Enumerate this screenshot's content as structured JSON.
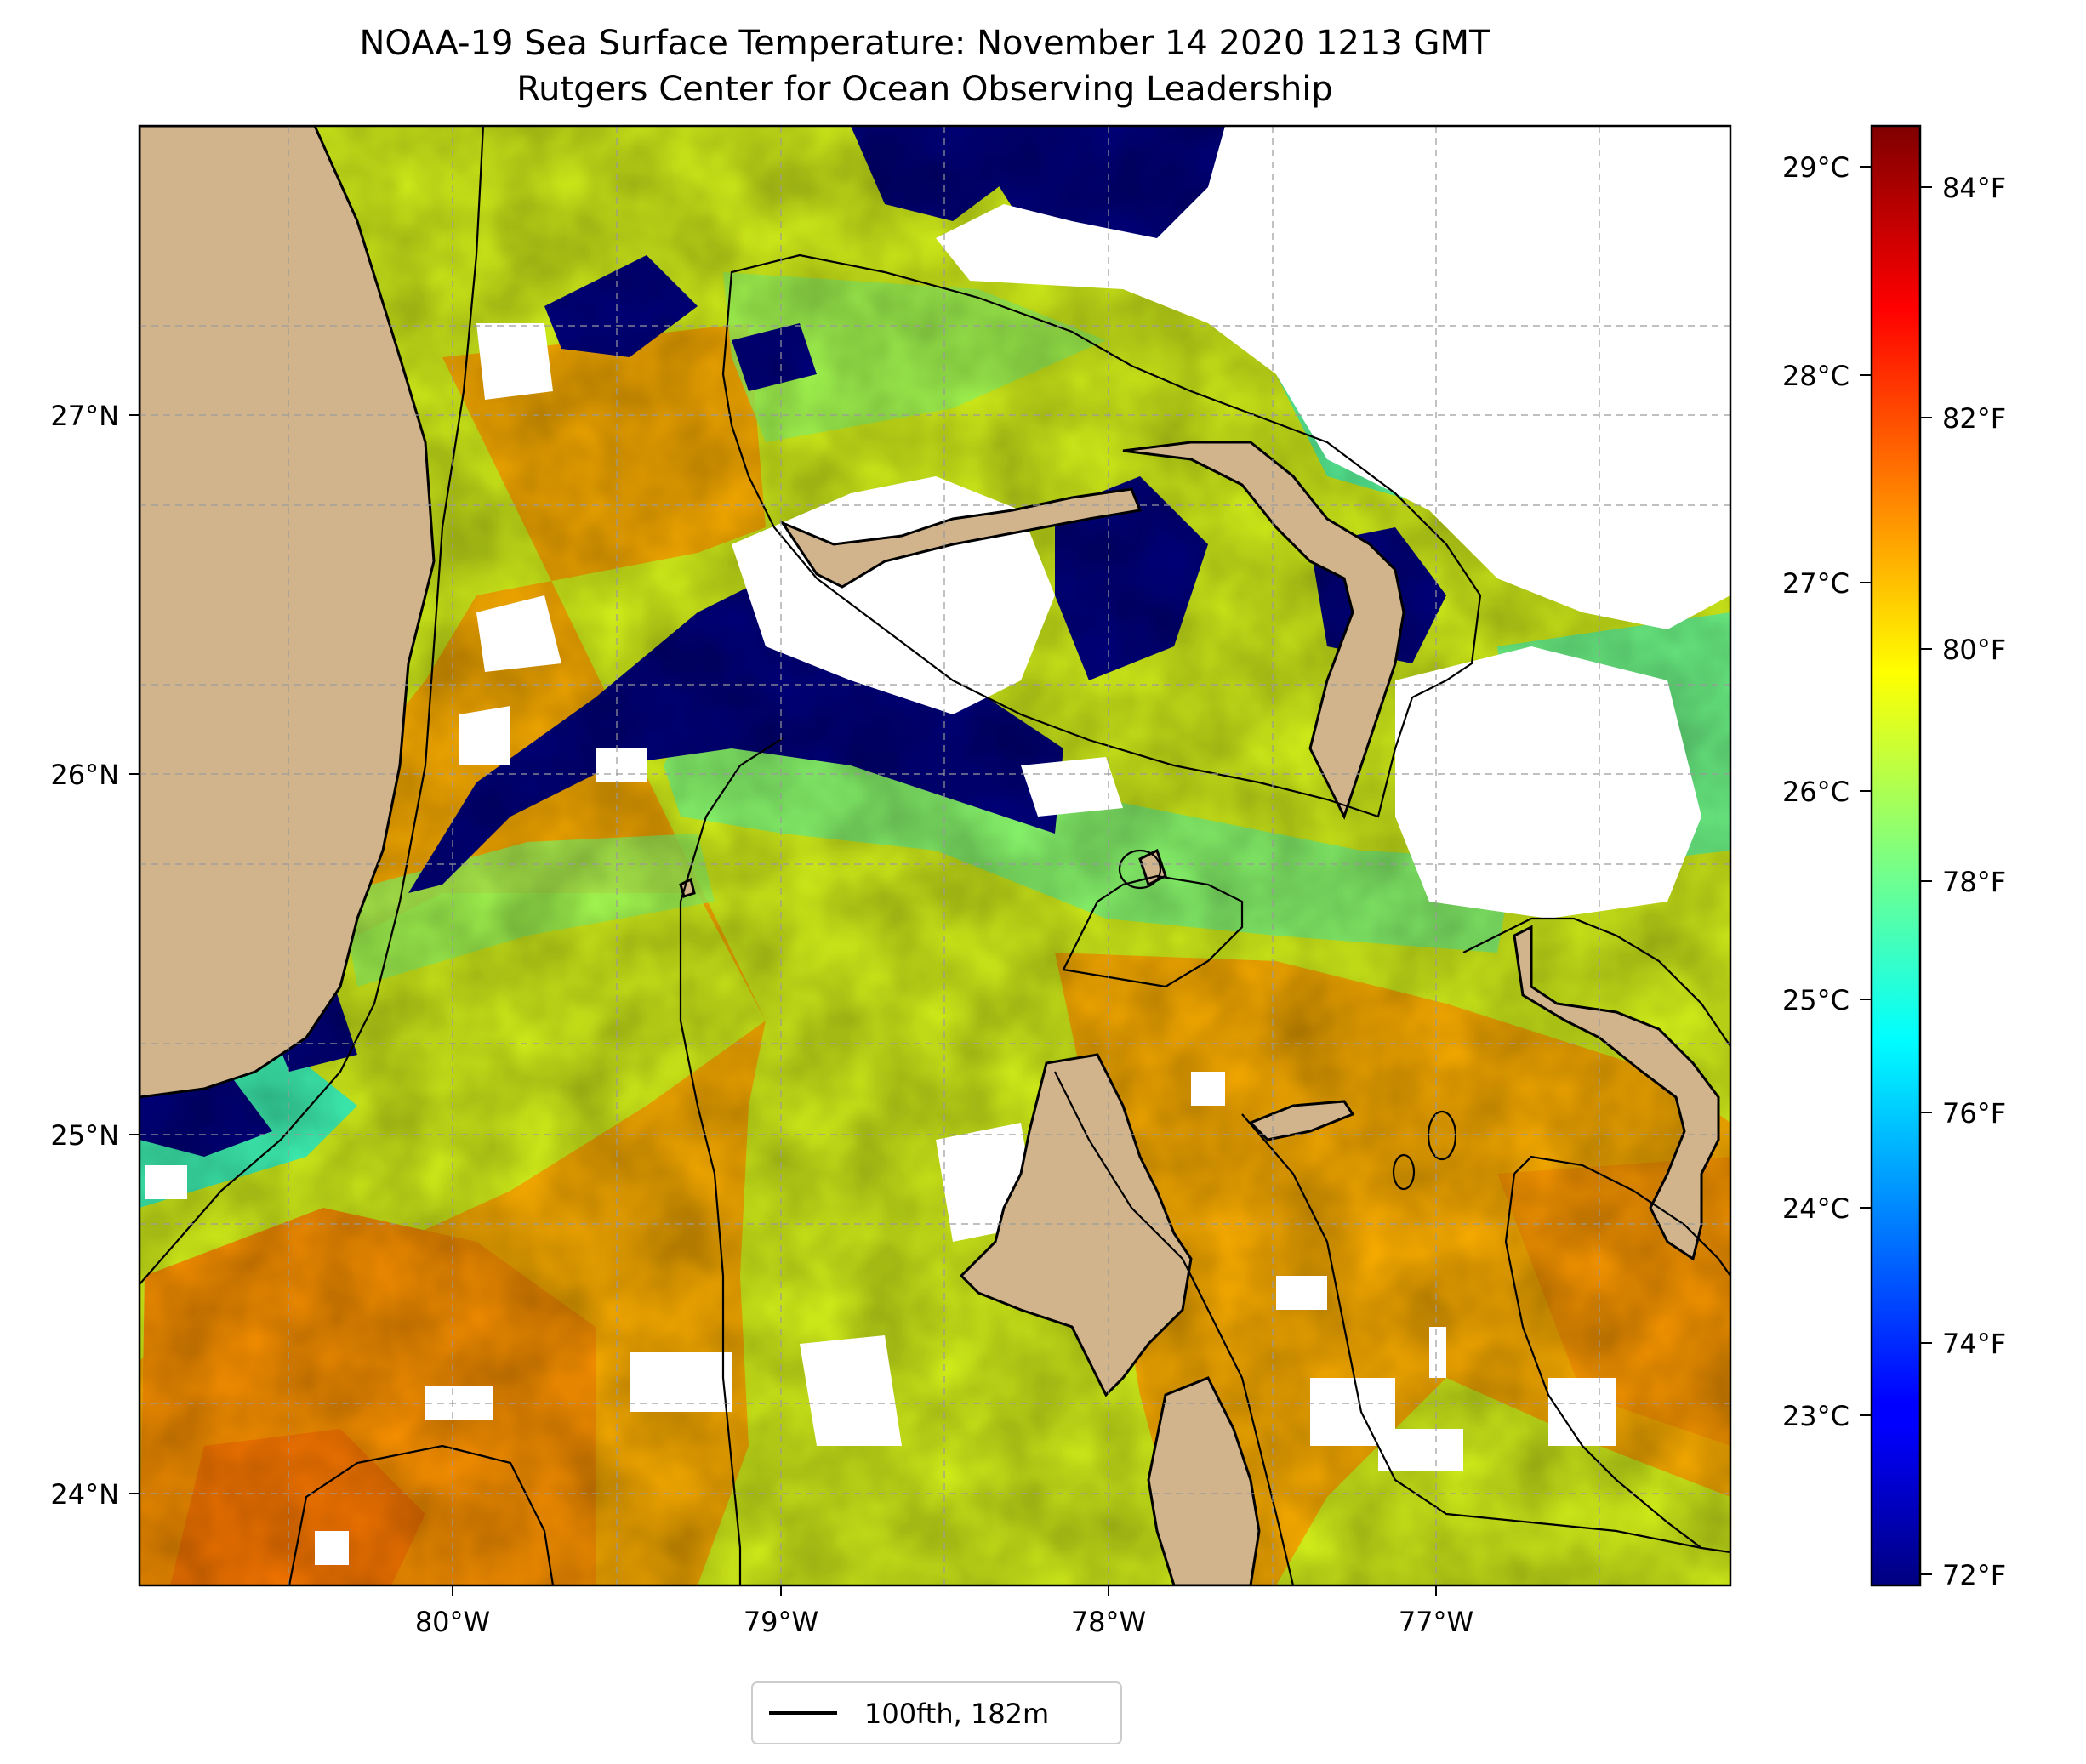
{
  "title": {
    "line1": "NOAA-19 Sea Surface Temperature: November 14 2020 1213 GMT",
    "line2": "Rutgers Center for Ocean Observing Leadership"
  },
  "map": {
    "lat_ticks": [
      "27°N",
      "26°N",
      "25°N",
      "24°N"
    ],
    "lon_ticks": [
      "80°W",
      "79°W",
      "78°W",
      "77°W"
    ],
    "lat_range": [
      23.75,
      27.8
    ],
    "lon_range": [
      -80.95,
      -76.1
    ],
    "gridlines": true,
    "colors": {
      "land": "#d2b48c",
      "cloud_mask": "#ffffff",
      "warm": "#ff7f00",
      "cool": "#00007f",
      "contour": "#000000"
    }
  },
  "colorbar": {
    "colormap": "jet",
    "celsius_ticks": [
      "29°C",
      "28°C",
      "27°C",
      "26°C",
      "25°C",
      "24°C",
      "23°C"
    ],
    "fahrenheit_ticks": [
      "84°F",
      "82°F",
      "80°F",
      "78°F",
      "76°F",
      "74°F",
      "72°F"
    ],
    "range_f": [
      71.9,
      84.6
    ]
  },
  "legend": {
    "label": "100fth, 182m",
    "placement": "bottom-center"
  }
}
